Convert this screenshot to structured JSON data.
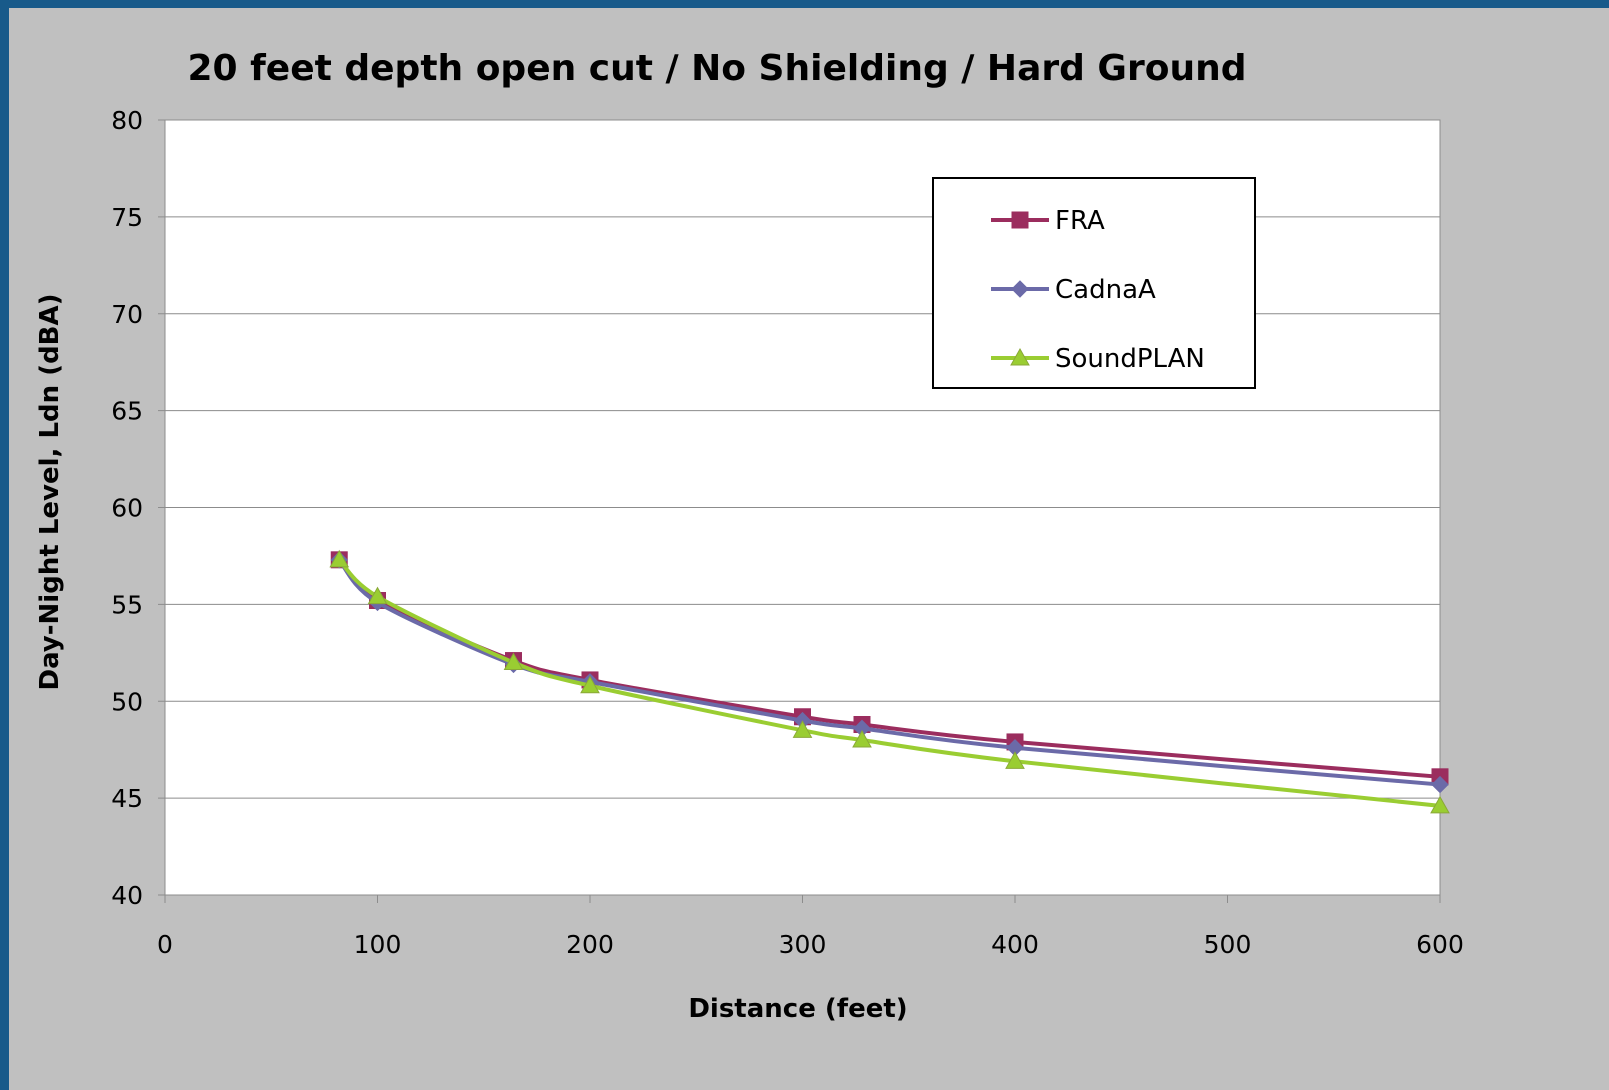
{
  "chart_data": {
    "type": "line",
    "title": "20 feet depth open cut / No Shielding / Hard Ground",
    "xlabel": "Distance (feet)",
    "ylabel": "Day-Night Level, Ldn (dBA)",
    "xlim": [
      0,
      600
    ],
    "ylim": [
      40,
      80
    ],
    "x_ticks": [
      "0",
      "100",
      "200",
      "300",
      "400",
      "500",
      "600"
    ],
    "y_ticks": [
      "40",
      "45",
      "50",
      "55",
      "60",
      "65",
      "70",
      "75",
      "80"
    ],
    "x_tick_values": [
      0,
      100,
      200,
      300,
      400,
      500,
      600
    ],
    "y_tick_values": [
      40,
      45,
      50,
      55,
      60,
      65,
      70,
      75,
      80
    ],
    "grid": "horizontal",
    "legend_position": "top-right",
    "series": [
      {
        "name": "FRA",
        "color": "#9b2d5e",
        "marker": "square",
        "x": [
          82,
          100,
          164,
          200,
          300,
          328,
          400,
          600
        ],
        "y": [
          57.3,
          55.2,
          52.1,
          51.1,
          49.2,
          48.8,
          47.9,
          46.1
        ]
      },
      {
        "name": "CadnaA",
        "color": "#6b6aa8",
        "marker": "diamond",
        "x": [
          82,
          100,
          164,
          200,
          300,
          328,
          400,
          600
        ],
        "y": [
          57.3,
          55.1,
          51.9,
          51.0,
          49.0,
          48.6,
          47.6,
          45.7
        ]
      },
      {
        "name": "SoundPLAN",
        "color": "#9acd32",
        "marker": "triangle",
        "x": [
          82,
          100,
          164,
          200,
          300,
          328,
          400,
          600
        ],
        "y": [
          57.3,
          55.4,
          52.0,
          50.8,
          48.5,
          48.0,
          46.9,
          44.6
        ]
      }
    ]
  }
}
